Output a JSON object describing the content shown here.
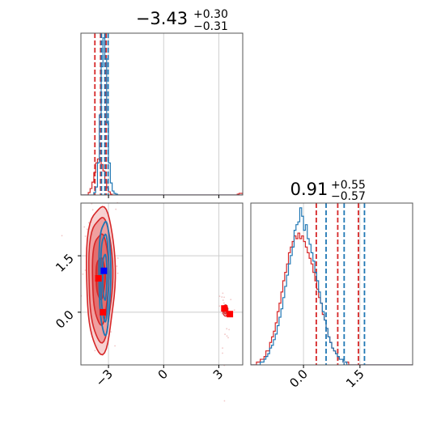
{
  "chart_data": [
    {
      "type": "histogram",
      "panel": "marginal-param-1",
      "title": {
        "value": "−3.43",
        "upper": "+0.30",
        "lower": "−0.31"
      },
      "xlim": [
        -4.5,
        4.3
      ],
      "grid": true,
      "series": [
        {
          "name": "",
          "color": "#d62728",
          "bin_start": -4.5,
          "bin_width": 0.1,
          "counts": [
            0,
            0,
            0,
            0,
            3,
            8,
            16,
            28,
            40,
            45,
            44,
            38,
            30,
            18,
            9,
            4,
            1,
            0,
            0,
            0,
            0,
            0,
            0,
            0,
            0,
            0,
            0,
            0,
            0,
            0,
            0,
            0,
            0,
            0,
            0,
            0,
            0,
            0,
            0,
            0,
            0,
            0,
            0,
            0,
            0,
            0,
            0,
            0,
            0,
            0,
            0,
            0,
            0,
            0,
            0,
            0,
            0,
            0,
            0,
            0,
            0,
            0,
            0,
            0,
            0,
            0,
            0,
            0,
            0,
            0,
            0,
            0,
            0,
            0,
            0,
            0,
            0,
            0,
            0,
            0,
            0,
            0,
            0,
            0,
            0,
            1,
            2,
            2,
            1,
            0
          ],
          "quantiles": [
            -3.74,
            -3.43,
            -3.13
          ]
        },
        {
          "name": "",
          "color": "#1f77b4",
          "bin_start": -4.5,
          "bin_width": 0.1,
          "counts": [
            0,
            0,
            0,
            0,
            0,
            0,
            0,
            3,
            10,
            40,
            100,
            160,
            196,
            170,
            90,
            40,
            15,
            5,
            2,
            1,
            0,
            0,
            0,
            0,
            0,
            0,
            0,
            0,
            0,
            0,
            0,
            0,
            0,
            0,
            0,
            0,
            0,
            0,
            0,
            0,
            0,
            0,
            0,
            0,
            0,
            0,
            0,
            0,
            0,
            0,
            0,
            0,
            0,
            0,
            0,
            0,
            0,
            0,
            0,
            0,
            0,
            0,
            0,
            0,
            0,
            0,
            0,
            0,
            0,
            0,
            0,
            0,
            0,
            0,
            0,
            0,
            0,
            0,
            0,
            0,
            0,
            0,
            0,
            0,
            0,
            0,
            0,
            0,
            0,
            0
          ],
          "quantiles": [
            -3.38,
            -3.2,
            -3.02
          ]
        }
      ]
    },
    {
      "type": "contour",
      "panel": "joint",
      "xlim": [
        -4.5,
        4.3
      ],
      "ylim": [
        -1.4,
        2.9
      ],
      "x_ticks": [
        "−3",
        "0",
        "3"
      ],
      "x_tick_values": [
        -3,
        0,
        3
      ],
      "y_ticks": [
        "0.0",
        "1.5"
      ],
      "y_tick_values": [
        0.0,
        1.5
      ],
      "grid": true,
      "red_main": {
        "cx": -3.43,
        "cy": 0.91,
        "levels": [
          [
            0.25,
            0.55
          ],
          [
            0.45,
            1.2
          ],
          [
            0.65,
            1.65
          ],
          [
            0.78,
            1.95
          ]
        ]
      },
      "blue_main": {
        "cx": -3.2,
        "cy": 0.95,
        "levels": [
          [
            0.12,
            0.6
          ],
          [
            0.22,
            1.15
          ],
          [
            0.32,
            1.5
          ]
        ]
      },
      "red_minor": {
        "cx": 3.35,
        "cy": 0.05,
        "levels": [
          [
            0.08,
            0.09
          ],
          [
            0.14,
            0.15
          ]
        ]
      },
      "markers": [
        {
          "color": "#0000ff",
          "x": -3.25,
          "y": 1.1
        },
        {
          "color": "#ff0000",
          "x": -3.55,
          "y": 0.9
        },
        {
          "color": "#ff0000",
          "x": -3.3,
          "y": 0.0
        },
        {
          "color": "#ff0000",
          "x": 3.3,
          "y": 0.1
        },
        {
          "color": "#ff0000",
          "x": 3.6,
          "y": -0.05
        }
      ]
    },
    {
      "type": "histogram",
      "panel": "marginal-param-2",
      "title": {
        "value": "0.91",
        "upper": "+0.55",
        "lower": "−0.57"
      },
      "xlim": [
        -1.4,
        2.9
      ],
      "x_ticks": [
        "0.0",
        "1.5"
      ],
      "x_tick_values": [
        0.0,
        1.5
      ],
      "grid": true,
      "series": [
        {
          "name": "",
          "color": "#d62728",
          "bin_start": -1.4,
          "bin_width": 0.05,
          "counts": [
            0,
            0,
            0,
            1,
            1,
            2,
            2,
            3,
            5,
            5,
            8,
            10,
            12,
            15,
            19,
            22,
            26,
            30,
            33,
            36,
            40,
            42,
            44,
            46,
            45,
            47,
            45,
            46,
            44,
            42,
            40,
            38,
            36,
            33,
            30,
            27,
            24,
            22,
            18,
            16,
            13,
            10,
            8,
            6,
            5,
            4,
            3,
            2,
            2,
            1,
            1,
            1,
            0,
            0,
            0,
            0,
            0,
            0,
            0,
            0,
            0,
            0,
            0,
            0,
            0,
            0,
            0,
            0,
            0,
            0,
            0,
            0,
            0,
            0,
            0,
            0,
            0,
            0,
            0,
            0,
            0,
            0,
            0,
            0,
            0,
            0
          ],
          "quantiles": [
            0.34,
            0.91,
            1.46
          ]
        },
        {
          "name": "",
          "color": "#1f77b4",
          "bin_start": -1.4,
          "bin_width": 0.05,
          "counts": [
            0,
            0,
            0,
            0,
            0,
            1,
            1,
            2,
            3,
            4,
            6,
            7,
            9,
            11,
            14,
            17,
            20,
            24,
            28,
            32,
            36,
            39,
            42,
            48,
            50,
            51,
            56,
            53,
            48,
            50,
            45,
            43,
            40,
            37,
            33,
            30,
            26,
            22,
            19,
            16,
            13,
            10,
            8,
            6,
            5,
            4,
            3,
            2,
            2,
            1,
            1,
            0,
            0,
            0,
            0,
            0,
            0,
            0,
            0,
            0,
            0,
            0,
            0,
            0,
            0,
            0,
            0,
            0,
            0,
            0,
            0,
            0,
            0,
            0,
            0,
            0,
            0,
            0,
            0,
            0,
            0,
            0,
            0,
            0,
            0,
            0
          ],
          "quantiles": [
            0.6,
            1.08,
            1.62
          ]
        }
      ]
    }
  ],
  "colors": {
    "red": "#d62728",
    "blue": "#1f77b4",
    "marker_red": "#ff0000",
    "marker_blue": "#0000ff"
  }
}
